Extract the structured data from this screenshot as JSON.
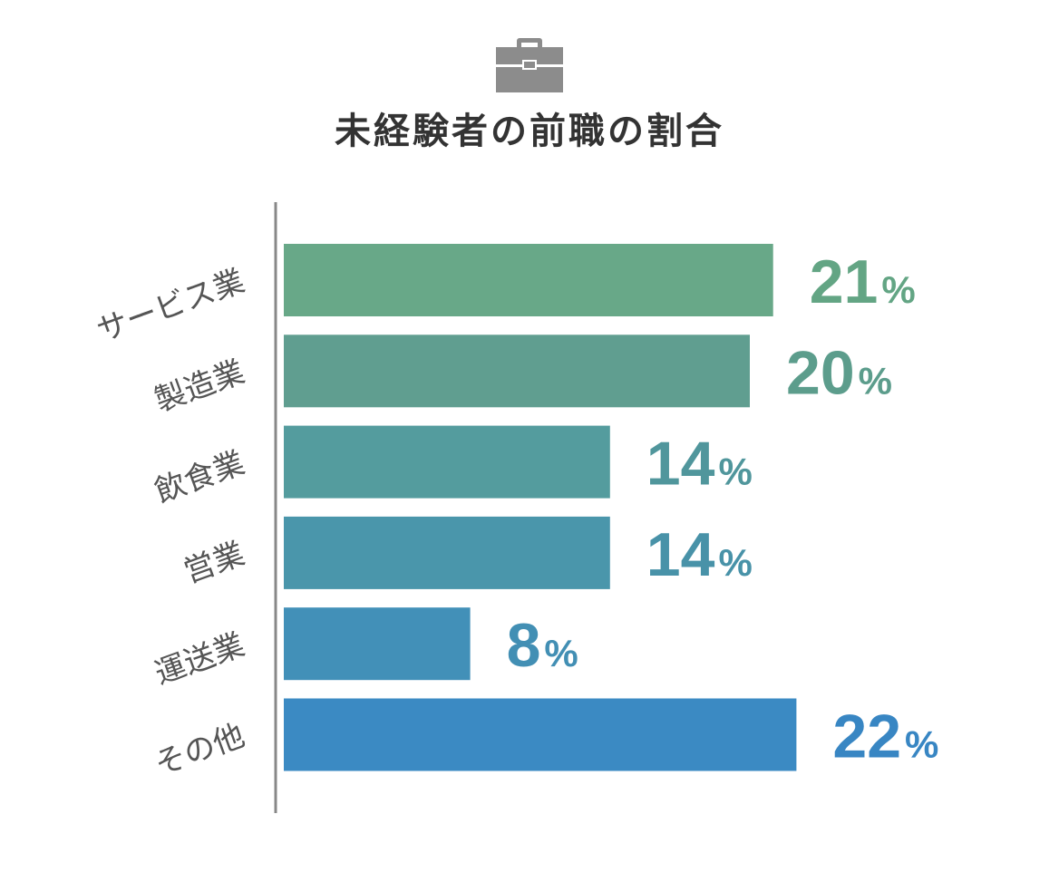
{
  "title": "未経験者の前職の割合",
  "icon": "briefcase-icon",
  "chart_data": {
    "type": "bar",
    "orientation": "horizontal",
    "title": "未経験者の前職の割合",
    "categories": [
      "サービス業",
      "製造業",
      "飲食業",
      "営業",
      "運送業",
      "その他"
    ],
    "values": [
      21,
      20,
      14,
      14,
      8,
      22
    ],
    "unit": "%",
    "colors": [
      "#68a888",
      "#609e90",
      "#549c9e",
      "#4a96ab",
      "#4290b8",
      "#3b8ac3"
    ],
    "label_colors": [
      "#63a584",
      "#5c9d8c",
      "#50969c",
      "#4892a8",
      "#428fb4",
      "#3886c3"
    ],
    "grid": false,
    "legend": "none"
  }
}
